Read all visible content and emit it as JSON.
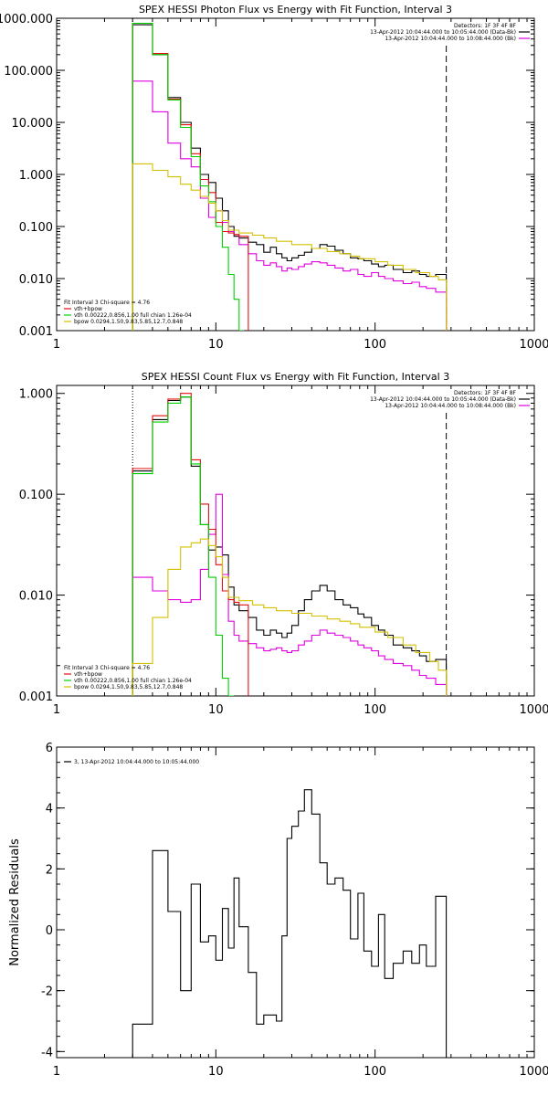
{
  "colors": {
    "data": "#000000",
    "bk": "#e000e0",
    "total": "#e01010",
    "vth": "#00d000",
    "bpow": "#d4c000",
    "axes": "#000000"
  },
  "chart_data": [
    {
      "type": "line",
      "title": "SPEX HESSI Photon Flux vs Energy with Fit Function, Interval 3",
      "x_scale": "log",
      "y_scale": "log",
      "xlim": [
        1,
        1000
      ],
      "ylim": [
        0.001,
        1000
      ],
      "xticks": [
        1,
        10,
        100,
        1000
      ],
      "xtick_labels": [
        "1",
        "10",
        "100",
        "1000"
      ],
      "yticks": [
        0.001,
        0.01,
        0.1,
        1,
        10,
        100,
        1000
      ],
      "ytick_labels": [
        "0.001",
        "0.010",
        "0.100",
        "1.000",
        "10.000",
        "100.000",
        "1000.000"
      ],
      "legend_right": [
        "Detectors: 1F 3F 4F 8F",
        "13-Apr-2012 10:04:44.000 to 10:05:44.000 (Data-Bk)",
        "13-Apr-2012 10:04:44.000 to 10:08:44.000 (Bk)"
      ],
      "legend_left": [
        "Fit Interval 3   Chi-square = 4.76",
        "vth+bpow",
        "vth 0.00222,0.856,1.00  full chian 1.26e-04",
        "bpow 0.0294,1.50,9.83,5.85,12.7,0.848"
      ],
      "markers": [
        3,
        280
      ],
      "series": [
        {
          "key": "data",
          "edges": [
            3,
            4,
            5,
            6,
            7,
            8,
            9,
            10,
            11,
            12,
            13,
            14,
            16,
            18,
            20,
            22,
            24,
            26,
            28,
            30,
            33,
            36,
            40,
            45,
            50,
            56,
            63,
            70,
            78,
            85,
            95,
            105,
            115,
            130,
            150,
            170,
            190,
            210,
            240,
            280
          ],
          "values": [
            750,
            200,
            30,
            10,
            3.2,
            1.0,
            0.7,
            0.35,
            0.2,
            0.1,
            0.065,
            0.06,
            0.05,
            0.045,
            0.032,
            0.04,
            0.03,
            0.025,
            0.022,
            0.025,
            0.028,
            0.032,
            0.038,
            0.045,
            0.042,
            0.035,
            0.03,
            0.025,
            0.024,
            0.022,
            0.019,
            0.017,
            0.018,
            0.015,
            0.013,
            0.014,
            0.012,
            0.011,
            0.012
          ]
        },
        {
          "key": "bk",
          "edges": [
            3,
            4,
            5,
            6,
            7,
            8,
            9,
            10,
            11,
            12,
            13,
            14,
            16,
            18,
            20,
            22,
            24,
            26,
            28,
            30,
            33,
            36,
            40,
            45,
            50,
            56,
            63,
            70,
            78,
            85,
            95,
            105,
            115,
            130,
            150,
            170,
            190,
            210,
            240,
            280
          ],
          "values": [
            62,
            16,
            4.0,
            2.0,
            1.4,
            0.35,
            0.15,
            0.2,
            0.12,
            0.08,
            0.07,
            0.045,
            0.03,
            0.022,
            0.018,
            0.02,
            0.017,
            0.014,
            0.016,
            0.015,
            0.017,
            0.019,
            0.021,
            0.02,
            0.018,
            0.016,
            0.014,
            0.015,
            0.012,
            0.011,
            0.013,
            0.011,
            0.01,
            0.009,
            0.008,
            0.0085,
            0.007,
            0.0065,
            0.0055
          ]
        },
        {
          "key": "total",
          "edges": [
            3,
            4,
            5,
            6,
            7,
            8,
            9,
            10,
            11,
            12,
            13,
            14,
            16
          ],
          "values": [
            800,
            210,
            28,
            9,
            2.5,
            0.8,
            0.45,
            0.12,
            0.08,
            0.075,
            0.07,
            0.065
          ]
        },
        {
          "key": "vth",
          "edges": [
            3,
            4,
            5,
            6,
            7,
            8,
            9,
            10,
            11,
            12,
            13,
            14,
            15
          ],
          "values": [
            800,
            200,
            27,
            8,
            2.2,
            0.6,
            0.3,
            0.1,
            0.04,
            0.012,
            0.004,
            0.001
          ]
        },
        {
          "key": "bpow",
          "edges": [
            3,
            4,
            5,
            6,
            7,
            8,
            9,
            10,
            11,
            12,
            14,
            17,
            20,
            24,
            30,
            40,
            50,
            60,
            70,
            80,
            100,
            120,
            150,
            180,
            220,
            250,
            280
          ],
          "values": [
            1.6,
            1.2,
            0.9,
            0.65,
            0.5,
            0.38,
            0.28,
            0.2,
            0.13,
            0.085,
            0.075,
            0.068,
            0.06,
            0.052,
            0.045,
            0.038,
            0.033,
            0.03,
            0.027,
            0.024,
            0.021,
            0.018,
            0.015,
            0.013,
            0.011,
            0.0095
          ]
        }
      ]
    },
    {
      "type": "line",
      "title": "SPEX HESSI Count Flux vs Energy with Fit Function, Interval 3",
      "x_scale": "log",
      "y_scale": "log",
      "xlim": [
        1,
        1000
      ],
      "ylim": [
        0.001,
        1.2
      ],
      "xticks": [
        1,
        10,
        100,
        1000
      ],
      "xtick_labels": [
        "1",
        "10",
        "100",
        "1000"
      ],
      "yticks": [
        0.001,
        0.01,
        0.1,
        1
      ],
      "ytick_labels": [
        "0.001",
        "0.010",
        "0.100",
        "1.000"
      ],
      "legend_right": [
        "Detectors: 1F 3F 4F 8F",
        "13-Apr-2012 10:04:44.000 to 10:05:44.000 (Data-Bk)",
        "13-Apr-2012 10:04:44.000 to 10:08:44.000 (Bk)"
      ],
      "legend_left": [
        "Fit Interval 3   Chi-square = 4.76",
        "vth+bpow",
        "vth 0.00222,0.856,1.00  full chian 1.26e-04",
        "bpow 0.0294,1.50,9.83,5.85,12.7,0.848"
      ],
      "markers": [
        3,
        280
      ],
      "series": [
        {
          "key": "data",
          "edges": [
            3,
            4,
            5,
            6,
            7,
            8,
            9,
            10,
            11,
            12,
            13,
            14,
            16,
            18,
            20,
            22,
            24,
            26,
            28,
            30,
            33,
            36,
            40,
            45,
            50,
            56,
            63,
            70,
            78,
            85,
            95,
            105,
            115,
            130,
            150,
            170,
            190,
            210,
            240,
            280
          ],
          "values": [
            0.17,
            0.55,
            0.85,
            0.92,
            0.19,
            0.05,
            0.028,
            0.03,
            0.025,
            0.012,
            0.008,
            0.007,
            0.006,
            0.0045,
            0.004,
            0.0045,
            0.0042,
            0.0038,
            0.0042,
            0.005,
            0.007,
            0.009,
            0.011,
            0.0125,
            0.011,
            0.009,
            0.008,
            0.0075,
            0.0065,
            0.006,
            0.005,
            0.0045,
            0.004,
            0.0032,
            0.003,
            0.0028,
            0.0025,
            0.0022,
            0.0023
          ]
        },
        {
          "key": "bk",
          "edges": [
            3,
            4,
            5,
            6,
            7,
            8,
            9,
            10,
            11,
            12,
            13,
            14,
            16,
            18,
            20,
            22,
            24,
            26,
            28,
            30,
            33,
            36,
            40,
            45,
            50,
            56,
            63,
            70,
            78,
            85,
            95,
            105,
            115,
            130,
            150,
            170,
            190,
            210,
            240,
            280
          ],
          "values": [
            0.015,
            0.011,
            0.009,
            0.0085,
            0.009,
            0.018,
            0.04,
            0.1,
            0.016,
            0.0055,
            0.004,
            0.0035,
            0.0033,
            0.003,
            0.0028,
            0.0029,
            0.003,
            0.0028,
            0.0027,
            0.0028,
            0.0032,
            0.0035,
            0.004,
            0.0045,
            0.0042,
            0.004,
            0.0038,
            0.0035,
            0.0032,
            0.003,
            0.0028,
            0.0025,
            0.0023,
            0.0021,
            0.002,
            0.0018,
            0.0016,
            0.0015,
            0.0013
          ]
        },
        {
          "key": "total",
          "edges": [
            3,
            4,
            5,
            6,
            7,
            8,
            9,
            10,
            11,
            12,
            13,
            14,
            16
          ],
          "values": [
            0.18,
            0.6,
            0.88,
            1.0,
            0.22,
            0.08,
            0.045,
            0.02,
            0.011,
            0.009,
            0.0085,
            0.008
          ]
        },
        {
          "key": "vth",
          "edges": [
            3,
            4,
            5,
            6,
            7,
            8,
            9,
            10,
            11,
            12,
            13
          ],
          "values": [
            0.16,
            0.52,
            0.8,
            0.92,
            0.2,
            0.05,
            0.015,
            0.004,
            0.0015,
            0.001
          ]
        },
        {
          "key": "bpow",
          "edges": [
            3,
            4,
            5,
            6,
            7,
            8,
            9,
            10,
            11,
            12,
            14,
            17,
            20,
            24,
            30,
            40,
            50,
            60,
            70,
            80,
            100,
            120,
            150,
            180,
            220,
            250,
            280
          ],
          "values": [
            0.0021,
            0.006,
            0.018,
            0.03,
            0.033,
            0.036,
            0.031,
            0.024,
            0.015,
            0.0095,
            0.0088,
            0.008,
            0.0075,
            0.007,
            0.0066,
            0.0062,
            0.0058,
            0.0055,
            0.0052,
            0.0048,
            0.0043,
            0.0038,
            0.0032,
            0.0027,
            0.0022,
            0.0018
          ]
        }
      ]
    },
    {
      "type": "line",
      "x_scale": "log",
      "y_scale": "linear",
      "xlim": [
        1,
        1000
      ],
      "ylim": [
        -4.2,
        6
      ],
      "xticks": [
        1,
        10,
        100,
        1000
      ],
      "xtick_labels": [
        "1",
        "10",
        "100",
        "1000"
      ],
      "yticks": [
        -4,
        -2,
        0,
        2,
        4,
        6
      ],
      "ytick_labels": [
        "-4",
        "-2",
        "0",
        "2",
        "4",
        "6"
      ],
      "ylabel": "Normalized Residuals",
      "legend_left": [
        "3, 13-Apr-2012 10:04:44.000 to 10:05:44.000"
      ],
      "series": [
        {
          "key": "data",
          "edges": [
            3,
            4,
            5,
            6,
            7,
            8,
            9,
            10,
            11,
            12,
            13,
            14,
            16,
            18,
            20,
            22,
            24,
            26,
            28,
            30,
            33,
            36,
            40,
            45,
            50,
            56,
            63,
            70,
            78,
            85,
            95,
            105,
            115,
            130,
            150,
            170,
            190,
            210,
            240,
            280
          ],
          "values": [
            -3.1,
            2.6,
            0.6,
            -2.0,
            1.5,
            -0.4,
            -0.2,
            -1.0,
            0.7,
            -0.6,
            1.7,
            0.1,
            -1.4,
            -3.1,
            -2.8,
            -2.8,
            -3.0,
            -0.2,
            3.0,
            3.4,
            3.9,
            4.6,
            3.8,
            2.2,
            1.5,
            1.7,
            1.3,
            -0.3,
            1.2,
            -0.7,
            -1.2,
            0.5,
            -1.6,
            -1.1,
            -0.7,
            -1.1,
            -0.5,
            -1.2,
            1.1
          ]
        }
      ]
    }
  ]
}
